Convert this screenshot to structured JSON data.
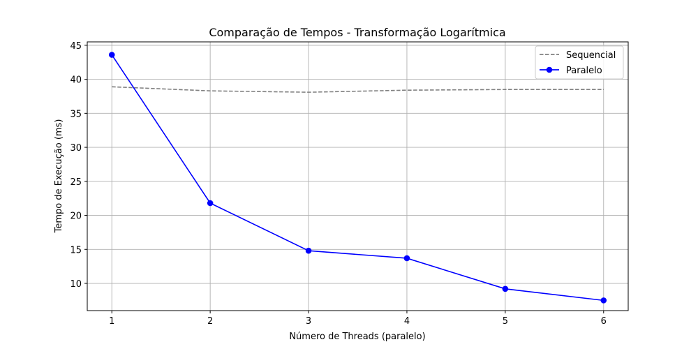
{
  "chart_data": {
    "type": "line",
    "title": "Comparação de Tempos - Transformação Logarítmica",
    "xlabel": "Número de Threads (paralelo)",
    "ylabel": "Tempo de Execução (ms)",
    "x": [
      1,
      2,
      3,
      4,
      5,
      6
    ],
    "x_ticks": [
      "1",
      "2",
      "3",
      "4",
      "5",
      "6"
    ],
    "y_ticks": [
      "10",
      "15",
      "20",
      "25",
      "30",
      "35",
      "40",
      "45"
    ],
    "xlim": [
      0.75,
      6.25
    ],
    "ylim": [
      6.0,
      45.5
    ],
    "grid": true,
    "legend_position": "top-right",
    "series": [
      {
        "name": "Sequencial",
        "values": [
          38.9,
          38.3,
          38.1,
          38.4,
          38.5,
          38.5
        ],
        "color": "#808080",
        "style": "dashed",
        "marker": "none"
      },
      {
        "name": "Paralelo",
        "values": [
          43.6,
          21.8,
          14.8,
          13.7,
          9.2,
          7.5
        ],
        "color": "#0000ff",
        "style": "solid",
        "marker": "circle"
      }
    ]
  }
}
